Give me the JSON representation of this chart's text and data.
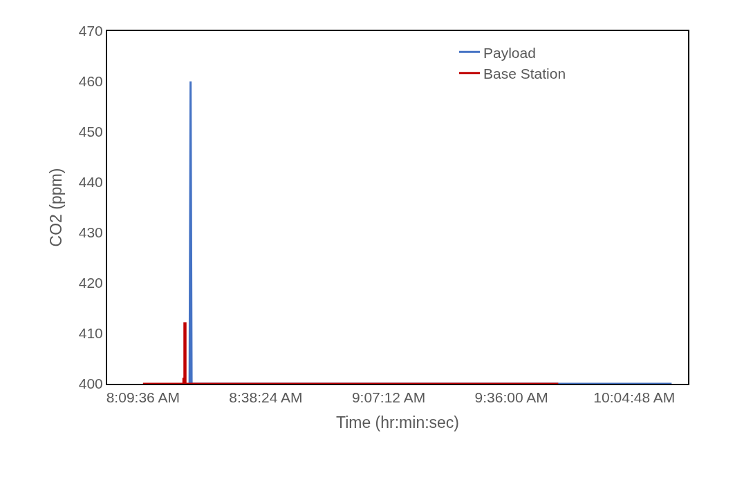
{
  "chart_data": {
    "type": "line",
    "xlabel": "Time (hr:min:sec)",
    "ylabel": "CO2 (ppm)",
    "xlim": [
      8.02,
      10.29
    ],
    "ylim": [
      400,
      470
    ],
    "xticks": [
      {
        "value": 8.16,
        "label": "8:09:36 AM"
      },
      {
        "value": 8.64,
        "label": "8:38:24 AM"
      },
      {
        "value": 9.12,
        "label": "9:07:12 AM"
      },
      {
        "value": 9.6,
        "label": "9:36:00 AM"
      },
      {
        "value": 10.08,
        "label": "10:04:48 AM"
      }
    ],
    "yticks": [
      400,
      410,
      420,
      430,
      440,
      450,
      460,
      470
    ],
    "grid": false,
    "legend": "top right",
    "marker": "none",
    "line_style": "solid",
    "series": [
      {
        "name": "Payload",
        "color": "#4472c4",
        "x": [
          8.342,
          8.346,
          8.35,
          10.226
        ],
        "values": [
          400,
          460,
          400,
          400
        ]
      },
      {
        "name": "Base Station",
        "color": "#c00000",
        "x": [
          8.16,
          8.318,
          8.318,
          8.322,
          8.322,
          8.326,
          8.326,
          9.783
        ],
        "values": [
          400,
          400,
          401,
          401,
          412,
          412,
          400,
          400
        ]
      }
    ]
  }
}
